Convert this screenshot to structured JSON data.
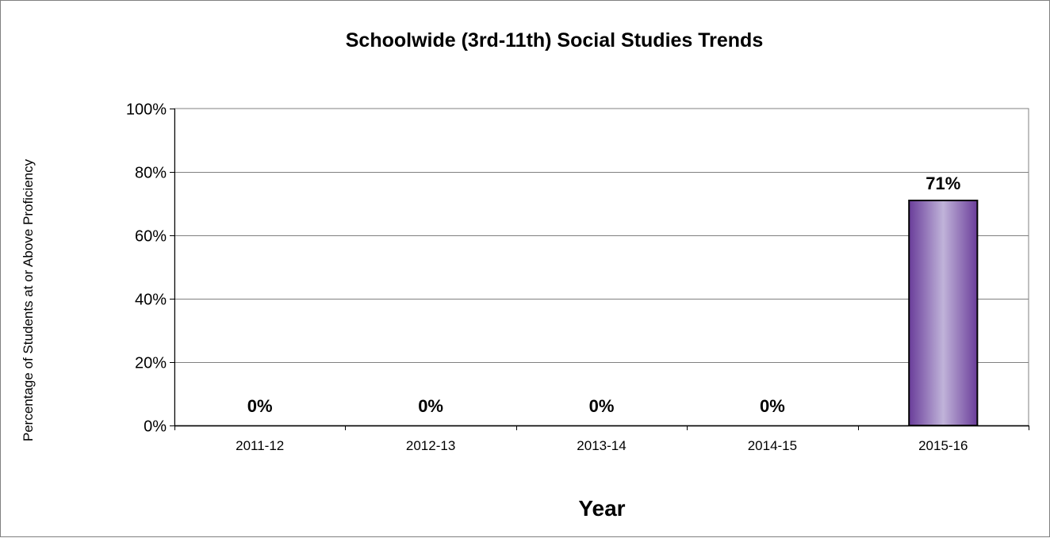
{
  "chart_data": {
    "type": "bar",
    "title": "Schoolwide (3rd-11th) Social Studies Trends",
    "xlabel": "Year",
    "ylabel": "Percentage of Students at or Above Proficiency",
    "categories": [
      "2011-12",
      "2012-13",
      "2013-14",
      "2014-15",
      "2015-16"
    ],
    "values": [
      0,
      0,
      0,
      0,
      71
    ],
    "data_labels": [
      "0%",
      "0%",
      "0%",
      "0%",
      "71%"
    ],
    "ylim": [
      0,
      100
    ],
    "yticks": [
      0,
      20,
      40,
      60,
      80,
      100
    ],
    "ytick_labels": [
      "0%",
      "20%",
      "40%",
      "60%",
      "80%",
      "100%"
    ],
    "grid": true,
    "legend": "none",
    "colors": {
      "bar_edge": "#6a3d9a",
      "bar_center": "#c0b3d9",
      "bar_outline": "#000000",
      "gridline": "#808080",
      "axis": "#808080"
    }
  }
}
